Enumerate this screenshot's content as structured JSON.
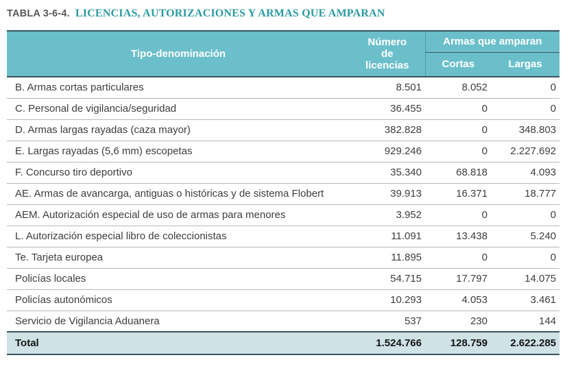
{
  "page": {
    "table_label": "TABLA 3-6-4.",
    "table_title": "LICENCIAS, AUTORIZACIONES Y ARMAS QUE AMPARAN"
  },
  "colors": {
    "header_bg": "#6bbfca",
    "header_text": "#ffffff",
    "title_label": "#595959",
    "title_text": "#2a9aa2",
    "total_bg": "#cfe2e6",
    "dark_border": "#3a545e",
    "divider": "#b8b8b8",
    "body_text": "#3d3d3d",
    "total_text": "#141414",
    "header_vline": "#4f9aa7"
  },
  "table": {
    "headers": {
      "col_type": "Tipo-denominación",
      "col_licenses": "Número de licencias",
      "group_weapons": "Armas que amparan",
      "col_short": "Cortas",
      "col_long": "Largas"
    },
    "rows": [
      {
        "label": "B. Armas cortas particulares",
        "licencias": "8.501",
        "cortas": "8.052",
        "largas": "0"
      },
      {
        "label": "C. Personal de vigilancia/seguridad",
        "licencias": "36.455",
        "cortas": "0",
        "largas": "0"
      },
      {
        "label": "D. Armas largas rayadas (caza mayor)",
        "licencias": "382.828",
        "cortas": "0",
        "largas": "348.803"
      },
      {
        "label": "E. Largas rayadas (5,6 mm) escopetas",
        "licencias": "929.246",
        "cortas": "0",
        "largas": "2.227.692"
      },
      {
        "label": "F. Concurso tiro deportivo",
        "licencias": "35.340",
        "cortas": "68.818",
        "largas": "4.093"
      },
      {
        "label": "AE. Armas de avancarga, antiguas o históricas y de sistema Flobert",
        "licencias": "39.913",
        "cortas": "16.371",
        "largas": "18.777"
      },
      {
        "label": "AEM. Autorización especial de uso de armas para menores",
        "licencias": "3.952",
        "cortas": "0",
        "largas": "0"
      },
      {
        "label": "L. Autorización especial libro de coleccionistas",
        "licencias": "11.091",
        "cortas": "13.438",
        "largas": "5.240"
      },
      {
        "label": "Te. Tarjeta europea",
        "licencias": "11.895",
        "cortas": "0",
        "largas": "0"
      },
      {
        "label": "Policías locales",
        "licencias": "54.715",
        "cortas": "17.797",
        "largas": "14.075"
      },
      {
        "label": "Policías autonómicos",
        "licencias": "10.293",
        "cortas": "4.053",
        "largas": "3.461"
      },
      {
        "label": "Servicio de Vigilancia Aduanera",
        "licencias": "537",
        "cortas": "230",
        "largas": "144"
      }
    ],
    "total": {
      "label": "Total",
      "licencias": "1.524.766",
      "cortas": "128.759",
      "largas": "2.622.285"
    }
  }
}
